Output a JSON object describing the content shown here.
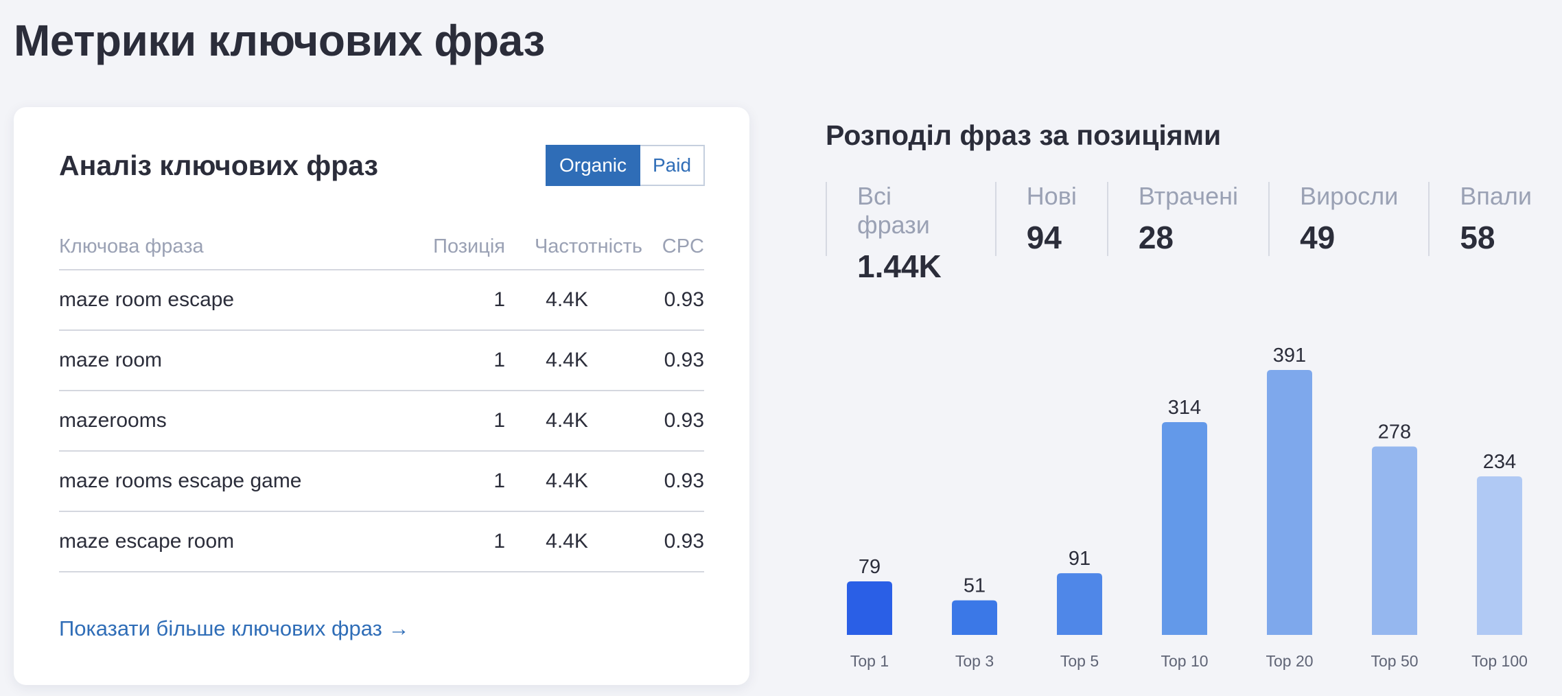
{
  "page_title": "Метрики ключових фраз",
  "keyword_card": {
    "title": "Аналіз ключових фраз",
    "toggle": {
      "organic": "Organic",
      "paid": "Paid",
      "active": "organic"
    },
    "columns": {
      "keyword": "Ключова фраза",
      "position": "Позиція",
      "frequency": "Частотність",
      "cpc": "CPC"
    },
    "rows": [
      {
        "keyword": "maze room escape",
        "position": "1",
        "frequency": "4.4K",
        "cpc": "0.93"
      },
      {
        "keyword": "maze room",
        "position": "1",
        "frequency": "4.4K",
        "cpc": "0.93"
      },
      {
        "keyword": "mazerooms",
        "position": "1",
        "frequency": "4.4K",
        "cpc": "0.93"
      },
      {
        "keyword": "maze rooms escape game",
        "position": "1",
        "frequency": "4.4K",
        "cpc": "0.93"
      },
      {
        "keyword": "maze escape room",
        "position": "1",
        "frequency": "4.4K",
        "cpc": "0.93"
      }
    ],
    "more_link": "Показати більше ключових фраз →"
  },
  "distribution": {
    "title": "Розподіл фраз за позиціями",
    "stats": [
      {
        "label": "Всі фрази",
        "value": "1.44K"
      },
      {
        "label": "Нові",
        "value": "94"
      },
      {
        "label": "Втрачені",
        "value": "28"
      },
      {
        "label": "Виросли",
        "value": "49"
      },
      {
        "label": "Впали",
        "value": "58"
      }
    ]
  },
  "chart_data": {
    "type": "bar",
    "title": "",
    "categories": [
      "Top 1",
      "Top 3",
      "Top 5",
      "Top 10",
      "Top 20",
      "Top 50",
      "Top 100"
    ],
    "values": [
      79,
      51,
      91,
      314,
      391,
      278,
      234
    ],
    "ylim": [
      0,
      391
    ],
    "grid": false,
    "colors": [
      "#2a5fe6",
      "#3b78e7",
      "#4f87e8",
      "#6399e9",
      "#7ea8ec",
      "#95b7ef",
      "#b0c9f4"
    ],
    "label_color": "#2b2d3a",
    "tick_color": "#5f6475"
  }
}
